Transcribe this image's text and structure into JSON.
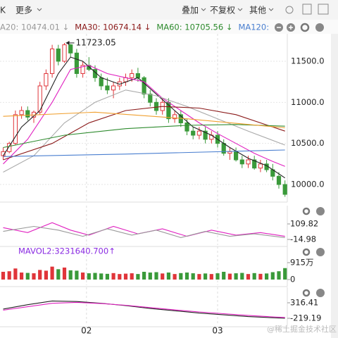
{
  "toolbar": {
    "items": [
      "K",
      "更多",
      "叠加",
      "不复权",
      "其他"
    ]
  },
  "watermark": "@稀土掘金技术社区",
  "chart_data": [
    {
      "type": "candlestick",
      "legend": [
        {
          "text": "A20: 10474.01 ↓",
          "color": "#9a9a9a"
        },
        {
          "text": "MA30: 10674.14 ↓",
          "color": "#8b1a1a"
        },
        {
          "text": "MA60: 10705.56 ↓",
          "color": "#2e8b2e"
        },
        {
          "text": "MA120:",
          "color": "#4a7fd0"
        }
      ],
      "annotation": {
        "text": "11723.05",
        "value": 11723.05
      },
      "up_color": "#e0353a",
      "down_color": "#3a9a3a",
      "ylim": [
        9803,
        11834
      ],
      "yticks": [
        {
          "value": 10000,
          "label": "10000.0"
        },
        {
          "value": 10500,
          "label": "10500.0"
        },
        {
          "value": 11000,
          "label": "11000.0"
        },
        {
          "value": 11500,
          "label": "11500.0"
        }
      ],
      "xlim": [
        -0.5,
        46.5
      ],
      "xticks": [
        {
          "value": 13.6,
          "label": "02"
        },
        {
          "value": 35,
          "label": "03"
        }
      ],
      "ohlc": [
        [
          10350,
          10450,
          10300,
          10400
        ],
        [
          10400,
          10520,
          10380,
          10500
        ],
        [
          10500,
          10900,
          10480,
          10850
        ],
        [
          10850,
          10950,
          10800,
          10900
        ],
        [
          10900,
          10950,
          10780,
          10820
        ],
        [
          10820,
          10900,
          10750,
          10880
        ],
        [
          10880,
          11250,
          10850,
          11200
        ],
        [
          11200,
          11400,
          11150,
          11350
        ],
        [
          11350,
          11700,
          11300,
          11650
        ],
        [
          11650,
          11700,
          11450,
          11500
        ],
        [
          11500,
          11723.05,
          11480,
          11700
        ],
        [
          11700,
          11710,
          11550,
          11600
        ],
        [
          11600,
          11650,
          11300,
          11350
        ],
        [
          11350,
          11500,
          11300,
          11450
        ],
        [
          11450,
          11550,
          11380,
          11400
        ],
        [
          11400,
          11450,
          11250,
          11300
        ],
        [
          11300,
          11350,
          11150,
          11200
        ],
        [
          11200,
          11300,
          11100,
          11150
        ],
        [
          11150,
          11250,
          11050,
          11200
        ],
        [
          11200,
          11300,
          11150,
          11250
        ],
        [
          11250,
          11350,
          11200,
          11300
        ],
        [
          11300,
          11400,
          11250,
          11350
        ],
        [
          11350,
          11420,
          11250,
          11300
        ],
        [
          11300,
          11320,
          11050,
          11100
        ],
        [
          11100,
          11150,
          10950,
          11000
        ],
        [
          11000,
          11050,
          10850,
          10900
        ],
        [
          10900,
          11050,
          10850,
          11000
        ],
        [
          11000,
          11050,
          10750,
          10800
        ],
        [
          10800,
          10900,
          10750,
          10850
        ],
        [
          10850,
          10900,
          10700,
          10750
        ],
        [
          10750,
          10800,
          10600,
          10650
        ],
        [
          10650,
          10700,
          10550,
          10600
        ],
        [
          10600,
          10700,
          10550,
          10650
        ],
        [
          10650,
          10700,
          10500,
          10550
        ],
        [
          10550,
          10650,
          10500,
          10600
        ],
        [
          10600,
          10650,
          10450,
          10500
        ],
        [
          10500,
          10550,
          10350,
          10380
        ],
        [
          10380,
          10450,
          10300,
          10400
        ],
        [
          10400,
          10450,
          10280,
          10300
        ],
        [
          10300,
          10350,
          10200,
          10250
        ],
        [
          10250,
          10350,
          10200,
          10300
        ],
        [
          10300,
          10350,
          10180,
          10200
        ],
        [
          10200,
          10300,
          10150,
          10250
        ],
        [
          10250,
          10300,
          10150,
          10180
        ],
        [
          10180,
          10250,
          10050,
          10100
        ],
        [
          10100,
          10150,
          9950,
          10000
        ],
        [
          10000,
          10050,
          9850,
          9880
        ]
      ],
      "lines": [
        {
          "color": "#222222",
          "x": [
            0,
            3,
            6,
            9,
            11,
            13,
            16,
            19,
            22,
            25,
            28,
            31,
            34,
            37,
            40,
            43,
            46
          ],
          "values": [
            10350,
            10700,
            10900,
            11350,
            11550,
            11500,
            11300,
            11220,
            11300,
            11100,
            10900,
            10700,
            10600,
            10450,
            10320,
            10230,
            10080
          ]
        },
        {
          "color": "#e020c0",
          "x": [
            0,
            4,
            8,
            11,
            14,
            17,
            20,
            23,
            26,
            29,
            32,
            35,
            38,
            41,
            44,
            46
          ],
          "values": [
            10250,
            10550,
            11000,
            11400,
            11450,
            11350,
            11300,
            11250,
            11050,
            10900,
            10750,
            10620,
            10500,
            10380,
            10280,
            10220
          ]
        },
        {
          "color": "#aaaaaa",
          "x": [
            0,
            5,
            10,
            15,
            20,
            25,
            30,
            35,
            40,
            46
          ],
          "values": [
            10150,
            10350,
            10750,
            11000,
            11150,
            11080,
            10950,
            10800,
            10650,
            10480
          ]
        },
        {
          "color": "#8b1a1a",
          "x": [
            0,
            8,
            14,
            20,
            26,
            32,
            38,
            46
          ],
          "values": [
            10300,
            10500,
            10750,
            10900,
            10950,
            10930,
            10850,
            10650
          ]
        },
        {
          "color": "#2e8b2e",
          "x": [
            0,
            10,
            20,
            30,
            38,
            46
          ],
          "values": [
            10450,
            10600,
            10680,
            10720,
            10730,
            10710
          ]
        },
        {
          "color": "#4a7fd0",
          "x": [
            0,
            20,
            46
          ],
          "values": [
            10340,
            10370,
            10420
          ]
        },
        {
          "color": "#f0a030",
          "x": [
            0,
            15,
            30,
            46
          ],
          "values": [
            10830,
            10880,
            10800,
            10690
          ]
        }
      ]
    },
    {
      "type": "line",
      "ylim": [
        -60,
        257
      ],
      "yticks": [
        -14.98,
        109.82
      ],
      "lines": [
        {
          "color": "#e020c0",
          "x": [
            0,
            4,
            8,
            11,
            14,
            18,
            22,
            26,
            30,
            34,
            38,
            42,
            46
          ],
          "values": [
            80,
            40,
            120,
            60,
            20,
            90,
            30,
            70,
            10,
            60,
            20,
            40,
            10
          ]
        },
        {
          "color": "#999999",
          "x": [
            0,
            5,
            9,
            13,
            17,
            21,
            25,
            29,
            33,
            37,
            41,
            46
          ],
          "values": [
            50,
            90,
            60,
            10,
            70,
            20,
            60,
            0,
            50,
            10,
            30,
            0
          ]
        }
      ]
    },
    {
      "type": "bar",
      "label": "MAVOL2:3231640.700↑",
      "label_color": "#8a2be2",
      "ylim": [
        -305,
        1792
      ],
      "yticks": [
        0,
        {
          "value": 915,
          "label": "915万"
        }
      ],
      "values": [
        420,
        450,
        600,
        380,
        360,
        340,
        520,
        480,
        700,
        560,
        650,
        500,
        480,
        380,
        340,
        360,
        330,
        310,
        350,
        300,
        320,
        340,
        300,
        420,
        380,
        400,
        330,
        380,
        300,
        350,
        380,
        340,
        300,
        330,
        300,
        340,
        420,
        320,
        340,
        360,
        300,
        350,
        310,
        330,
        400,
        450,
        620
      ]
    },
    {
      "type": "line",
      "ylim": [
        -463,
        852
      ],
      "yticks": [
        -219.19,
        316.41
      ],
      "lines": [
        {
          "color": "#222222",
          "x": [
            0,
            4,
            8,
            12,
            16,
            20,
            24,
            28,
            32,
            36,
            40,
            44,
            46
          ],
          "values": [
            100,
            250,
            380,
            360,
            300,
            220,
            120,
            40,
            -40,
            -100,
            -160,
            -200,
            -219.19
          ]
        },
        {
          "color": "#e020c0",
          "x": [
            0,
            4,
            8,
            12,
            16,
            20,
            24,
            28,
            32,
            36,
            40,
            44,
            46
          ],
          "values": [
            60,
            180,
            300,
            330,
            290,
            230,
            150,
            70,
            0,
            -60,
            -120,
            -170,
            -190
          ]
        }
      ]
    }
  ]
}
